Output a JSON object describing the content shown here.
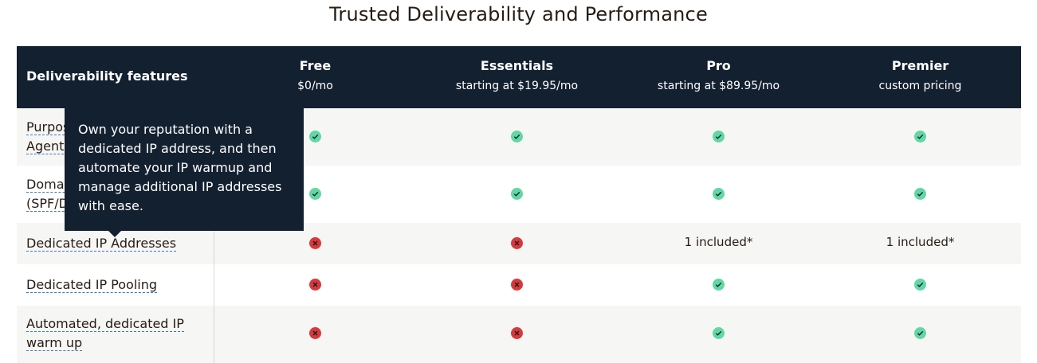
{
  "page": {
    "title": "Trusted Deliverability and Performance"
  },
  "table": {
    "feature_header": "Deliverability features",
    "plans": [
      {
        "name": "Free",
        "price": "$0/mo"
      },
      {
        "name": "Essentials",
        "price": "starting at $19.95/mo"
      },
      {
        "name": "Pro",
        "price": "starting at $89.95/mo"
      },
      {
        "name": "Premier",
        "price": "custom pricing"
      }
    ],
    "rows": [
      {
        "label_line1": "Purpose-Built Mail Transfer",
        "label_line2": "Agent",
        "cells": [
          "check",
          "check",
          "check",
          "check"
        ]
      },
      {
        "label_line1": "Domain Authentication",
        "label_line2": "(SPF/DKIM/DMARC)",
        "cells": [
          "check",
          "check",
          "check",
          "check"
        ]
      },
      {
        "label_line1": "Dedicated IP Addresses",
        "label_line2": "",
        "cells": [
          "cross",
          "cross",
          "1 included*",
          "1 included*"
        ]
      },
      {
        "label_line1": "Dedicated IP Pooling",
        "label_line2": "",
        "cells": [
          "cross",
          "cross",
          "check",
          "check"
        ]
      },
      {
        "label_line1": "Automated, dedicated IP",
        "label_line2": "warm up",
        "cells": [
          "cross",
          "cross",
          "check",
          "check"
        ]
      }
    ]
  },
  "tooltip": {
    "text": "Own your reputation with a dedicated IP address, and then automate your IP warmup and manage additional IP addresses with ease."
  },
  "icons": {
    "included": "check-circle-icon",
    "not_included": "x-circle-icon"
  },
  "colors": {
    "header_bg": "#132030",
    "check": "#62d7a4",
    "cross": "#d9383a",
    "link_underline": "#3b7bbf"
  }
}
